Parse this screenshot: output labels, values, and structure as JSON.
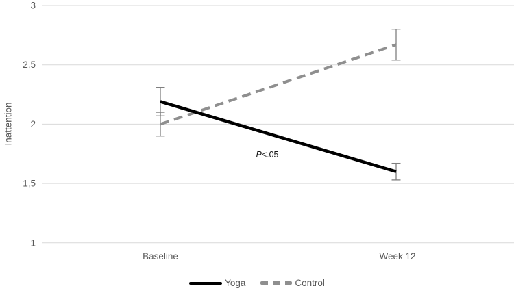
{
  "chart_data": {
    "type": "line",
    "title": "",
    "xlabel": "",
    "ylabel": "Inattention",
    "categories": [
      "Baseline",
      "Week 12"
    ],
    "series": [
      {
        "name": "Yoga",
        "values": [
          2.19,
          1.6
        ],
        "errors": [
          0.12,
          0.07
        ],
        "color": "#000000",
        "dash": "solid"
      },
      {
        "name": "Control",
        "values": [
          2.0,
          2.67
        ],
        "errors": [
          0.1,
          0.13
        ],
        "color": "#8f8f8f",
        "dash": "dashed"
      }
    ],
    "ylim": [
      1,
      3
    ],
    "yticks": [
      {
        "value": 3,
        "label": "3"
      },
      {
        "value": 2.5,
        "label": "2,5"
      },
      {
        "value": 2,
        "label": "2"
      },
      {
        "value": 1.5,
        "label": "1,5"
      },
      {
        "value": 1,
        "label": "1"
      }
    ],
    "grid": true,
    "legend_position": "bottom",
    "annotation": {
      "text": "P<.05",
      "italic_part": "P",
      "rest": "<.05"
    }
  },
  "colors": {
    "background": "#ffffff",
    "gridline": "#d9d9d9",
    "tick_label": "#595959",
    "error_bar": "#7f7f7f",
    "annotation_text": "#111111"
  }
}
